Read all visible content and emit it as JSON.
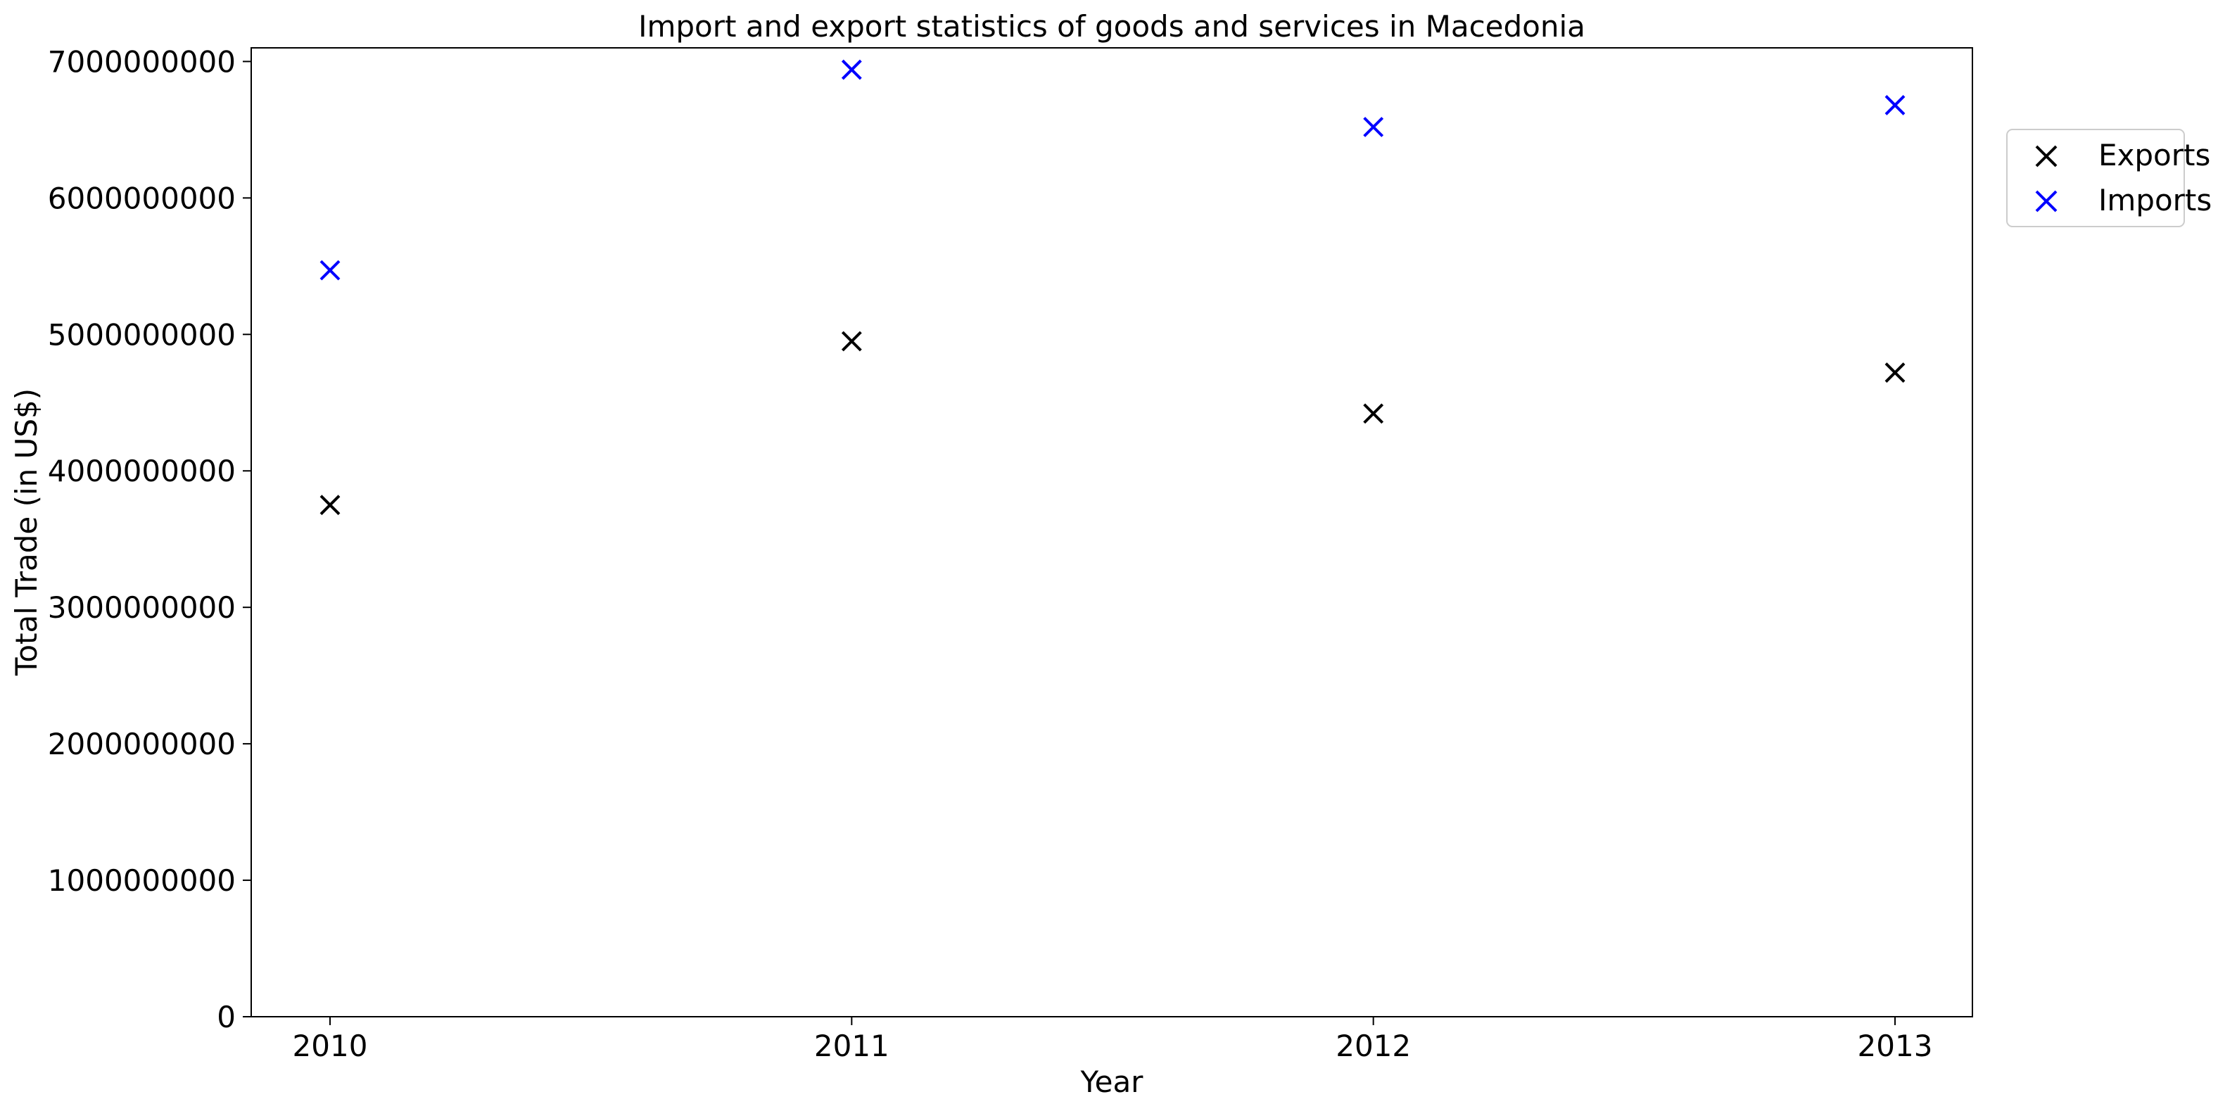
{
  "chart_data": {
    "type": "scatter",
    "title": "Import and export statistics of goods and services in Macedonia",
    "xlabel": "Year",
    "ylabel": "Total Trade (in US$)",
    "x": [
      "2010",
      "2011",
      "2012",
      "2013"
    ],
    "ylim": [
      0,
      7100000000
    ],
    "yticks": [
      "0",
      "1000000000",
      "2000000000",
      "3000000000",
      "4000000000",
      "5000000000",
      "6000000000",
      "7000000000"
    ],
    "grid": false,
    "legend_position": "outside right, upper",
    "marker": "x",
    "series": [
      {
        "name": "Exports",
        "color": "#000000",
        "values": [
          3750000000,
          4950000000,
          4420000000,
          4720000000
        ]
      },
      {
        "name": "Imports",
        "color": "#0000ff",
        "values": [
          5470000000,
          6940000000,
          6520000000,
          6680000000
        ]
      }
    ]
  }
}
